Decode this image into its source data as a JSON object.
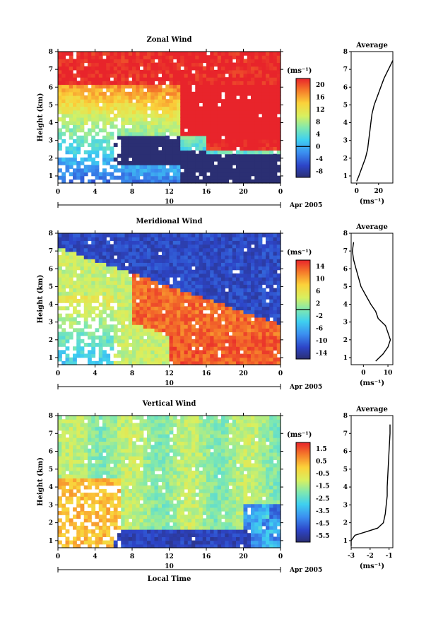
{
  "chart_data": [
    {
      "type": "heatmap",
      "title": "Zonal Wind",
      "xlabel": "",
      "ylabel": "Height (km)",
      "xlim": [
        0,
        24
      ],
      "ylim": [
        0.6,
        8
      ],
      "x_ticks": [
        "0",
        "4",
        "8",
        "12",
        "16",
        "20",
        "0"
      ],
      "y_ticks": [
        "1",
        "2",
        "3",
        "4",
        "5",
        "6",
        "7",
        "8"
      ],
      "date_axis": {
        "day": "10",
        "month_year": "Apr 2005"
      },
      "colorbar": {
        "unit": "(ms⁻¹)",
        "ticks": [
          "20",
          "16",
          "12",
          "8",
          "4",
          "0",
          "-4",
          "-8"
        ],
        "range": [
          -10,
          22
        ],
        "zero_line": 0
      },
      "average_panel": {
        "title": "Average",
        "unit": "(ms⁻¹)",
        "x_ticks": [
          "0",
          "20"
        ],
        "xlim": [
          -5,
          33
        ],
        "profile": {
          "height_km": [
            0.7,
            1.0,
            1.5,
            2.0,
            2.5,
            3.0,
            3.5,
            4.0,
            4.5,
            5.0,
            5.5,
            6.0,
            6.5,
            7.0,
            7.5
          ],
          "speed_ms": [
            0,
            2,
            5,
            8,
            10,
            11,
            12,
            13,
            14,
            16,
            19,
            22,
            25,
            29,
            33
          ]
        }
      }
    },
    {
      "type": "heatmap",
      "title": "Meridional Wind",
      "xlabel": "",
      "ylabel": "Height (km)",
      "xlim": [
        0,
        24
      ],
      "ylim": [
        0.6,
        8
      ],
      "x_ticks": [
        "0",
        "4",
        "8",
        "12",
        "16",
        "20",
        "0"
      ],
      "y_ticks": [
        "1",
        "2",
        "3",
        "4",
        "5",
        "6",
        "7",
        "8"
      ],
      "date_axis": {
        "day": "10",
        "month_year": "Apr 2005"
      },
      "colorbar": {
        "unit": "(ms⁻¹)",
        "ticks": [
          "14",
          "10",
          "6",
          "2",
          "-2",
          "-6",
          "-10",
          "-14"
        ],
        "range": [
          -16,
          16
        ],
        "zero_line": 0
      },
      "average_panel": {
        "title": "Average",
        "unit": "(ms⁻¹)",
        "x_ticks": [
          "0",
          "10"
        ],
        "xlim": [
          -5,
          12
        ],
        "profile": {
          "height_km": [
            0.8,
            1.2,
            1.6,
            2.0,
            2.4,
            2.8,
            3.2,
            3.6,
            4.0,
            4.5,
            5.0,
            5.5,
            6.0,
            6.5,
            7.0,
            7.5
          ],
          "speed_ms": [
            5,
            8,
            10,
            11,
            10,
            9,
            6,
            5,
            3,
            1,
            -1,
            -2,
            -3,
            -4,
            -4.5,
            -4
          ]
        }
      }
    },
    {
      "type": "heatmap",
      "title": "Vertical Wind",
      "xlabel": "Local Time",
      "ylabel": "Height (km)",
      "xlim": [
        0,
        24
      ],
      "ylim": [
        0.6,
        8
      ],
      "x_ticks": [
        "0",
        "4",
        "8",
        "12",
        "16",
        "20",
        "0"
      ],
      "y_ticks": [
        "1",
        "2",
        "3",
        "4",
        "5",
        "6",
        "7",
        "8"
      ],
      "date_axis": {
        "day": "10",
        "month_year": "Apr 2005"
      },
      "colorbar": {
        "unit": "(ms⁻¹)",
        "ticks": [
          "1.5",
          "0.5",
          "-0.5",
          "-1.5",
          "-2.5",
          "-3.5",
          "-4.5",
          "-5.5"
        ],
        "range": [
          -6,
          2
        ]
      },
      "average_panel": {
        "title": "Average",
        "unit": "(ms⁻¹)",
        "x_ticks": [
          "-3",
          "-2",
          "-1"
        ],
        "xlim": [
          -3,
          -0.8
        ],
        "profile": {
          "height_km": [
            0.7,
            1.0,
            1.3,
            1.5,
            1.7,
            2.0,
            2.5,
            3.0,
            3.5,
            4.0,
            5.0,
            6.0,
            7.0,
            7.5
          ],
          "speed_ms": [
            -3,
            -3,
            -2.8,
            -2.2,
            -1.6,
            -1.3,
            -1.2,
            -1.15,
            -1.1,
            -1.1,
            -1.05,
            -1.0,
            -0.95,
            -0.95
          ]
        }
      }
    }
  ]
}
